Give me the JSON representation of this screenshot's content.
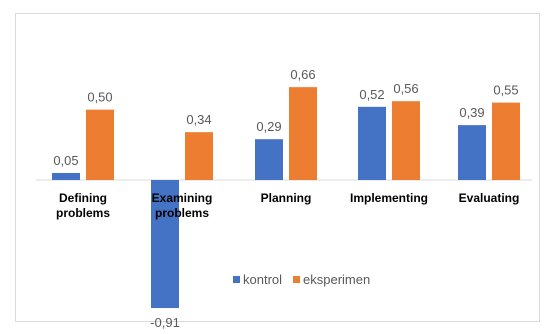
{
  "chart_data": {
    "type": "bar",
    "title": "",
    "xlabel": "",
    "ylabel": "",
    "categories": [
      "Defining problems",
      "Examining problems",
      "Planning",
      "Implementing",
      "Evaluating"
    ],
    "category_lines": [
      [
        "Defining",
        "problems"
      ],
      [
        "Examining",
        "problems"
      ],
      [
        "Planning"
      ],
      [
        "Implementing"
      ],
      [
        "Evaluating"
      ]
    ],
    "series": [
      {
        "name": "kontrol",
        "color": "#4472C4",
        "values": [
          0.05,
          -0.91,
          0.29,
          0.52,
          0.39
        ],
        "labels": [
          "0,05",
          "-0,91",
          "0,29",
          "0,52",
          "0,39"
        ]
      },
      {
        "name": "eksperimen",
        "color": "#ED7D31",
        "values": [
          0.5,
          0.34,
          0.66,
          0.56,
          0.55
        ],
        "labels": [
          "0,50",
          "0,34",
          "0,66",
          "0,56",
          "0,55"
        ]
      }
    ],
    "ylim": [
      -0.95,
      0.8
    ],
    "grid": false,
    "legend_position": "bottom-inside"
  }
}
